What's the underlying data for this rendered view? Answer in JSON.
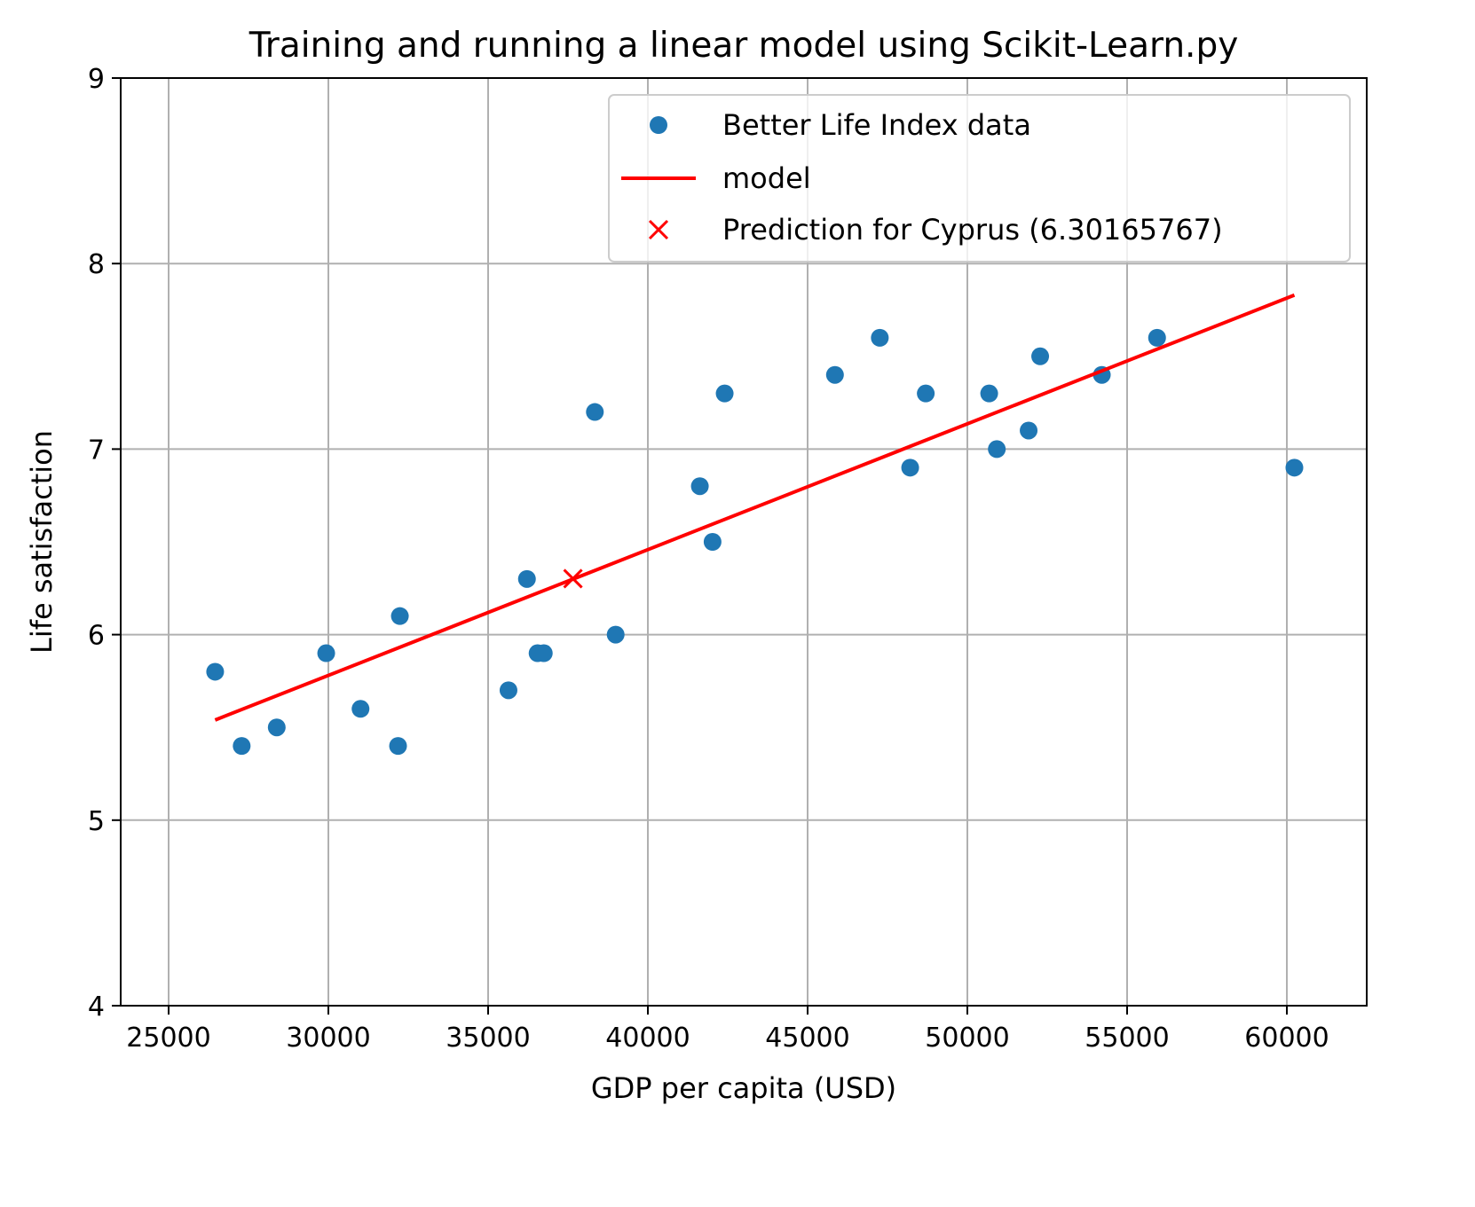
{
  "chart_data": {
    "type": "scatter",
    "title": "Training and running a linear model using Scikit-Learn.py",
    "xlabel": "GDP per capita (USD)",
    "ylabel": "Life satisfaction",
    "xlim": [
      23500,
      62500
    ],
    "ylim": [
      4,
      9
    ],
    "xticks": [
      "25000",
      "30000",
      "35000",
      "40000",
      "45000",
      "50000",
      "55000",
      "60000"
    ],
    "yticks": [
      "4",
      "5",
      "6",
      "7",
      "8",
      "9"
    ],
    "grid": true,
    "legend_position": "upper right",
    "colors": {
      "points": "#1f77b4",
      "model": "#ff0000",
      "prediction": "#ff0000",
      "grid": "#b0b0b0"
    },
    "series": [
      {
        "name": "Better Life Index data",
        "kind": "scatter",
        "x": [
          26456,
          27287,
          28384,
          29932,
          31007,
          32181,
          32238,
          35638,
          36215,
          36548,
          36743,
          38341,
          38992,
          41627,
          42025,
          42404,
          45856,
          47260,
          48210,
          48698,
          50683,
          50922,
          51918,
          52279,
          54209,
          55938,
          60236
        ],
        "y": [
          5.8,
          5.4,
          5.5,
          5.9,
          5.6,
          5.4,
          6.1,
          5.7,
          6.3,
          5.9,
          5.9,
          7.2,
          6.0,
          6.8,
          6.5,
          7.3,
          7.4,
          7.6,
          6.9,
          7.3,
          7.3,
          7.0,
          7.1,
          7.5,
          7.4,
          7.6,
          6.9
        ]
      },
      {
        "name": "model",
        "kind": "line",
        "x": [
          26456,
          60236
        ],
        "y": [
          5.54,
          7.83
        ]
      },
      {
        "name": "Prediction for Cyprus (6.30165767)",
        "kind": "marker-x",
        "x": [
          37655
        ],
        "y": [
          6.30165767
        ]
      }
    ]
  }
}
